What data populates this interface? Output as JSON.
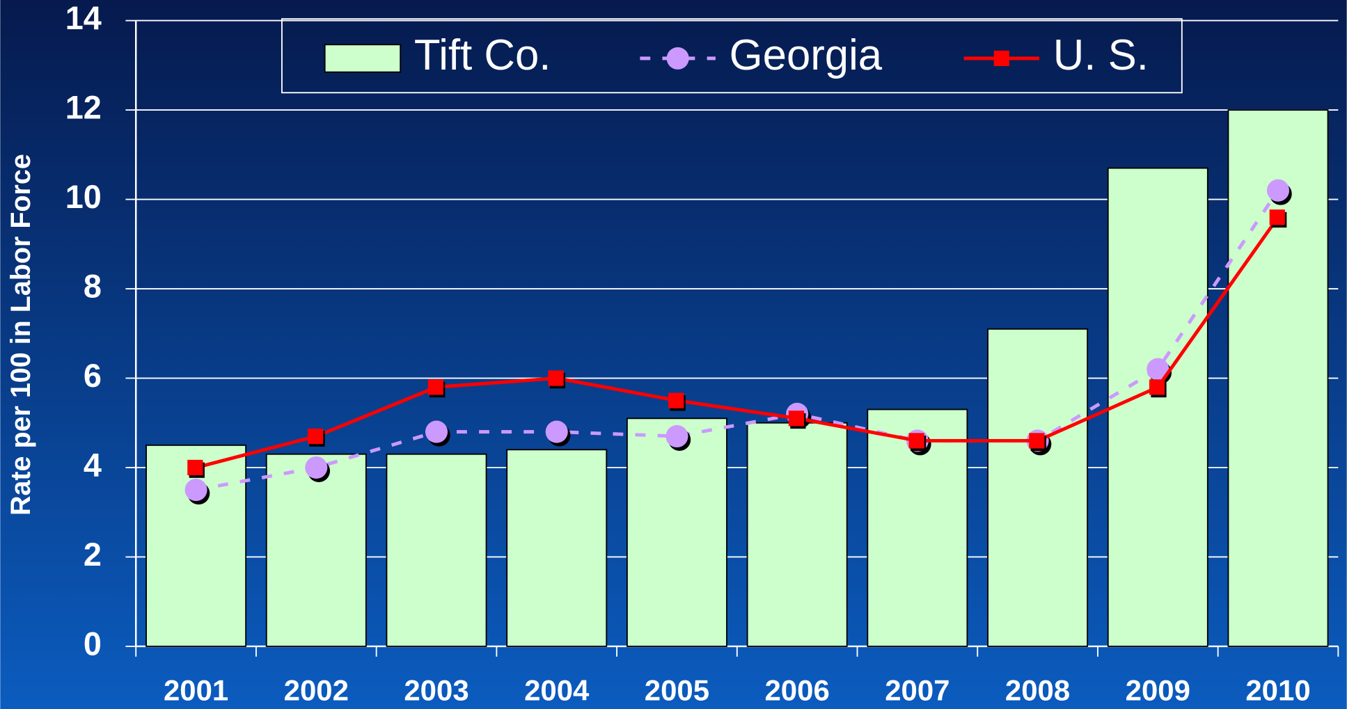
{
  "chart_data": {
    "type": "bar_line",
    "y_label": "Rate per 100 in Labor Force",
    "categories": [
      "2001",
      "2002",
      "2003",
      "2004",
      "2005",
      "2006",
      "2007",
      "2008",
      "2009",
      "2010"
    ],
    "series": [
      {
        "name": "Tift Co.",
        "type": "bar",
        "color": "#ccffcc",
        "values": [
          4.5,
          4.3,
          4.3,
          4.4,
          5.1,
          5.0,
          5.3,
          7.1,
          10.7,
          12.0
        ]
      },
      {
        "name": "Georgia",
        "type": "line",
        "marker": "circle",
        "dashed": true,
        "color": "#cc99ff",
        "values": [
          3.5,
          4.0,
          4.8,
          4.8,
          4.7,
          5.2,
          4.6,
          4.6,
          6.2,
          10.2
        ]
      },
      {
        "name": "U. S.",
        "type": "line",
        "marker": "square",
        "dashed": false,
        "color": "#ff0000",
        "values": [
          4.0,
          4.7,
          5.8,
          6.0,
          5.5,
          5.1,
          4.6,
          4.6,
          5.8,
          9.6
        ]
      }
    ],
    "ylim": [
      0,
      14
    ],
    "yticks": [
      0,
      2,
      4,
      6,
      8,
      10,
      12,
      14
    ],
    "grid": true,
    "legend": "top"
  }
}
